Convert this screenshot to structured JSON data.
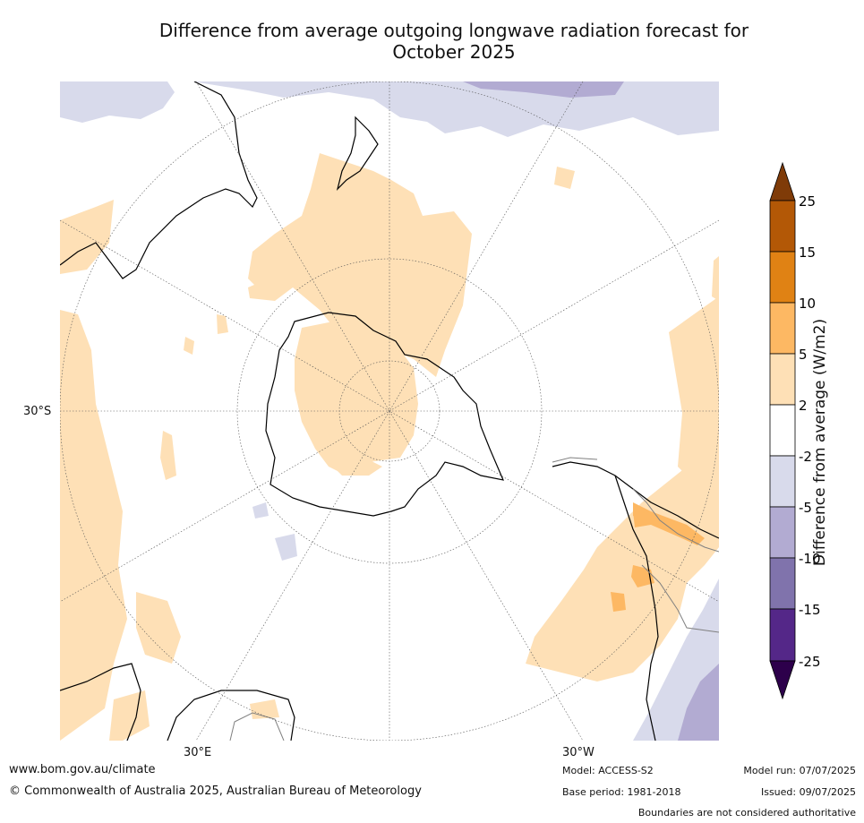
{
  "title_line1": "Difference from average outgoing longwave radiation forecast for",
  "title_line2": "October 2025",
  "lat_label": "30°S",
  "lon_label_left": "30°E",
  "lon_label_right": "30°W",
  "colorbar": {
    "title": "Difference from average (W/m2)",
    "ticks": [
      "25",
      "15",
      "10",
      "5",
      "2",
      "-2",
      "-5",
      "-10",
      "-15",
      "-25"
    ],
    "colors": {
      "over": "#7f3b08",
      "15_25": "#b35806",
      "10_15": "#e08214",
      "5_10": "#fdb863",
      "2_5": "#fee0b6",
      "neutral": "#ffffff",
      "m5_m2": "#d8daeb",
      "m10_m5": "#b2abd2",
      "m15_m10": "#8073ac",
      "m25_m15": "#542788",
      "under": "#2d004b"
    }
  },
  "footer": {
    "url": "www.bom.gov.au/climate",
    "copyright": "© Commonwealth of Australia 2025, Australian Bureau of Meteorology",
    "model": "Model: ACCESS-S2",
    "base_period": "Base period: 1981-2018",
    "model_run": "Model run: 07/07/2025",
    "issued": "Issued: 09/07/2025",
    "disclaimer": "Boundaries are not considered authoritative"
  }
}
